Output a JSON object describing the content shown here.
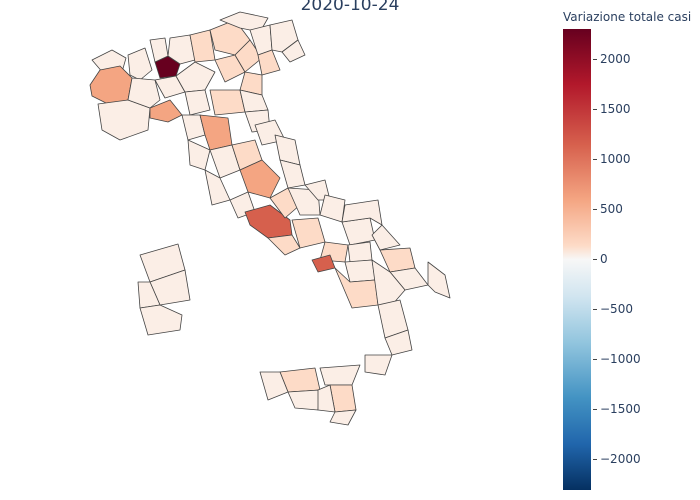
{
  "title": "2020-10-24",
  "legend": {
    "title": "Variazione totale casi",
    "ticks": [
      "2000",
      "1500",
      "1000",
      "500",
      "0",
      "−500",
      "−1000",
      "−1500",
      "−2000"
    ]
  },
  "colors": {
    "max": "#67001f",
    "high": "#d6604d",
    "mid": "#f4a582",
    "light": "#fddbc7",
    "pale": "#fbeee6",
    "neutral": "#f7f7f7"
  }
}
